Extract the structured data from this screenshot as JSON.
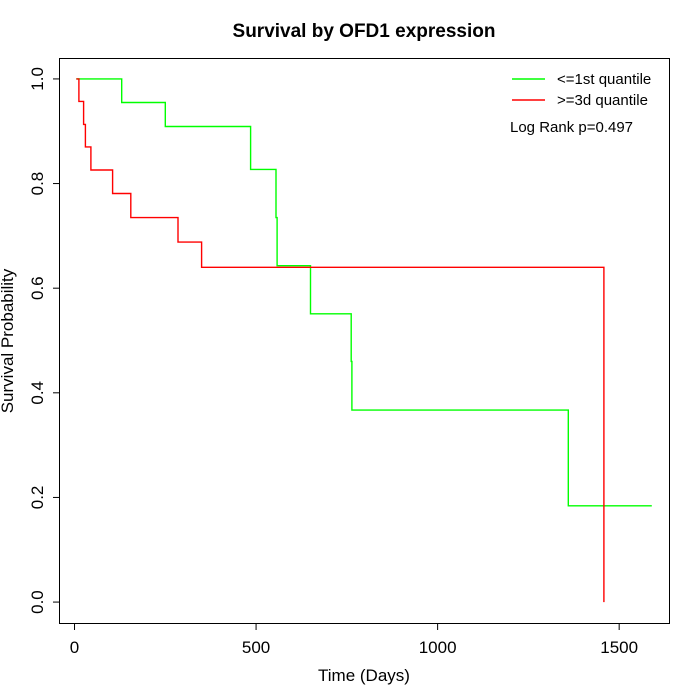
{
  "chart_data": {
    "type": "line",
    "title": "Survival by OFD1 expression",
    "xlabel": "Time (Days)",
    "ylabel": "Survival Probability",
    "xlim": [
      -40,
      1640
    ],
    "ylim": [
      -0.04,
      1.04
    ],
    "x_ticks": [
      0,
      500,
      1000,
      1500
    ],
    "y_ticks": [
      0.0,
      0.2,
      0.4,
      0.6,
      0.8,
      1.0
    ],
    "x_tick_labels": [
      "0",
      "500",
      "1000",
      "1500"
    ],
    "y_tick_labels": [
      "0.0",
      "0.2",
      "0.4",
      "0.6",
      "0.8",
      "1.0"
    ],
    "grid": false,
    "legend_position": "top-right",
    "annotation": "Log Rank p=0.497",
    "series": [
      {
        "name": "<=1st quantile",
        "color": "#00ff00",
        "points": [
          [
            5,
            1.0
          ],
          [
            130,
            1.0
          ],
          [
            130,
            0.955
          ],
          [
            250,
            0.955
          ],
          [
            250,
            0.909
          ],
          [
            485,
            0.909
          ],
          [
            485,
            0.827
          ],
          [
            555,
            0.827
          ],
          [
            555,
            0.735
          ],
          [
            558,
            0.735
          ],
          [
            558,
            0.643
          ],
          [
            650,
            0.643
          ],
          [
            650,
            0.551
          ],
          [
            762,
            0.551
          ],
          [
            762,
            0.46
          ],
          [
            764,
            0.46
          ],
          [
            764,
            0.367
          ],
          [
            1360,
            0.367
          ],
          [
            1360,
            0.184
          ],
          [
            1590,
            0.184
          ]
        ]
      },
      {
        "name": ">=3d quantile",
        "color": "#ff0000",
        "points": [
          [
            5,
            1.0
          ],
          [
            12,
            1.0
          ],
          [
            12,
            0.957
          ],
          [
            25,
            0.957
          ],
          [
            25,
            0.913
          ],
          [
            30,
            0.913
          ],
          [
            30,
            0.87
          ],
          [
            45,
            0.87
          ],
          [
            45,
            0.826
          ],
          [
            105,
            0.826
          ],
          [
            105,
            0.781
          ],
          [
            155,
            0.781
          ],
          [
            155,
            0.735
          ],
          [
            285,
            0.735
          ],
          [
            285,
            0.688
          ],
          [
            350,
            0.688
          ],
          [
            350,
            0.64
          ],
          [
            1458,
            0.64
          ],
          [
            1458,
            0.0
          ]
        ]
      }
    ]
  }
}
